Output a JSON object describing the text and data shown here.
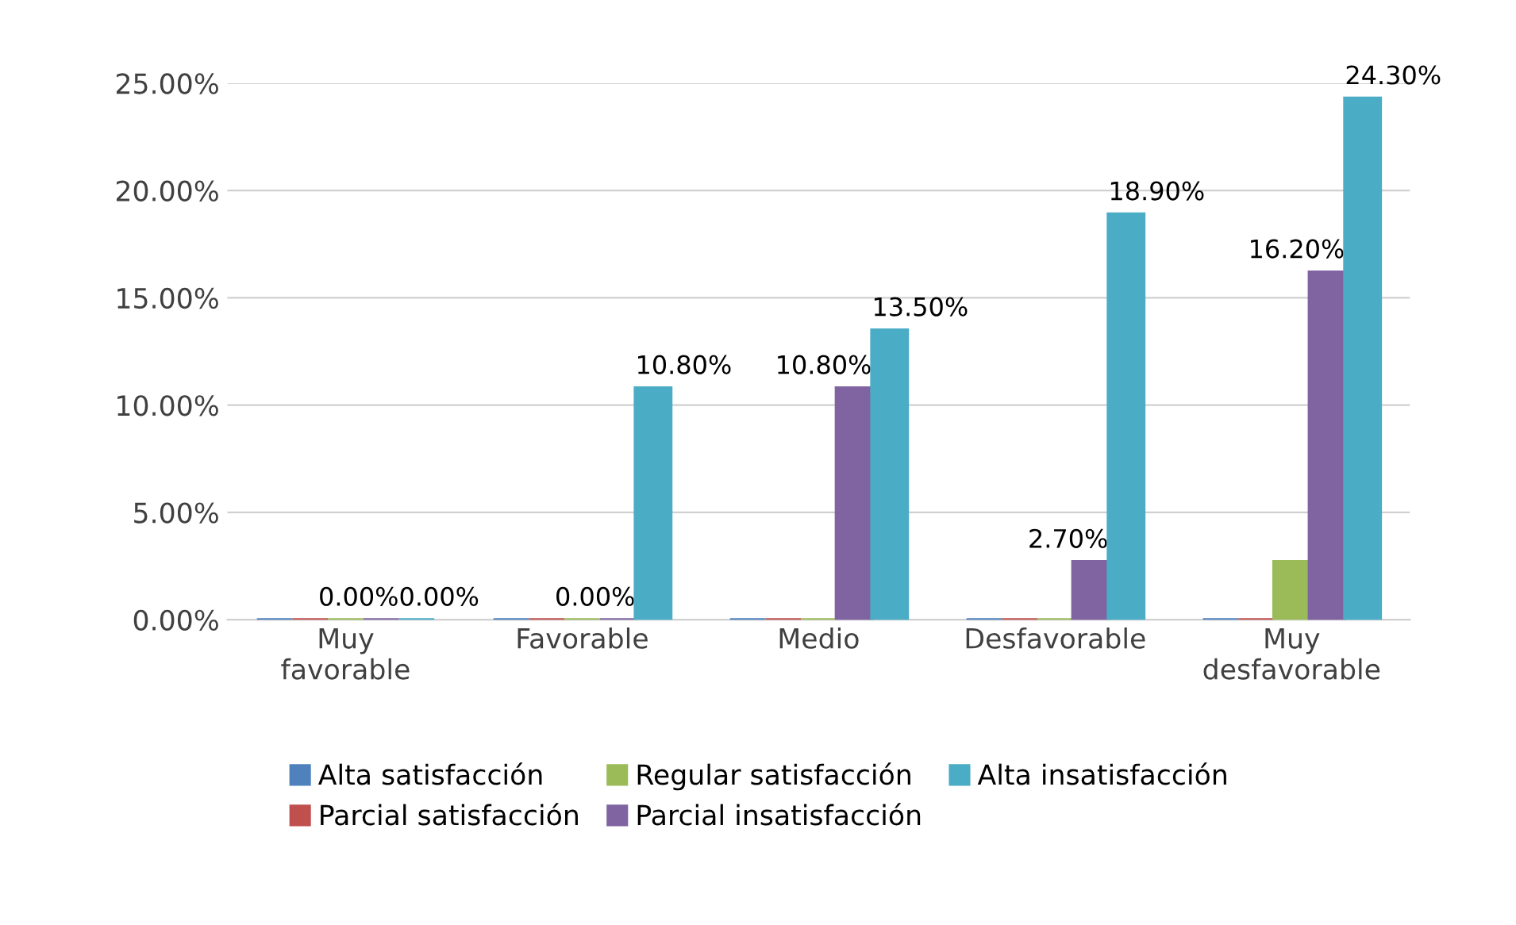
{
  "chart_data": {
    "type": "bar",
    "categories": [
      "Muy\nfavorable",
      "Favorable",
      "Medio",
      "Desfavorable",
      "Muy\ndesfavorable"
    ],
    "series": [
      {
        "name": "Alta satisfacción",
        "color": "#4f81bd",
        "values": [
          0,
          0,
          0,
          0,
          0
        ]
      },
      {
        "name": "Parcial satisfacción",
        "color": "#c0504d",
        "values": [
          0,
          0,
          0,
          0,
          0
        ]
      },
      {
        "name": "Regular satisfacción",
        "color": "#9bbb59",
        "values": [
          0,
          0,
          0,
          0,
          2.7
        ]
      },
      {
        "name": "Parcial insatisfacción",
        "color": "#8064a2",
        "values": [
          0,
          0,
          10.8,
          2.7,
          16.2
        ],
        "value_labels": [
          "0.00%",
          "0.00%",
          "10.80%",
          "2.70%",
          "16.20%"
        ]
      },
      {
        "name": "Alta insatisfacción",
        "color": "#4bacc6",
        "values": [
          0,
          10.8,
          13.5,
          18.9,
          24.3
        ],
        "value_labels": [
          "0.00%",
          "10.80%",
          "13.50%",
          "18.90%",
          "24.30%"
        ]
      }
    ],
    "ylim": [
      0,
      25
    ],
    "yticks": [
      {
        "value": 0,
        "label": "0.00%"
      },
      {
        "value": 5,
        "label": "5.00%"
      },
      {
        "value": 10,
        "label": "10.00%"
      },
      {
        "value": 15,
        "label": "15.00%"
      },
      {
        "value": 20,
        "label": "20.00%"
      },
      {
        "value": 25,
        "label": "25.00%"
      }
    ],
    "grid": "y",
    "legend": "bottom"
  }
}
